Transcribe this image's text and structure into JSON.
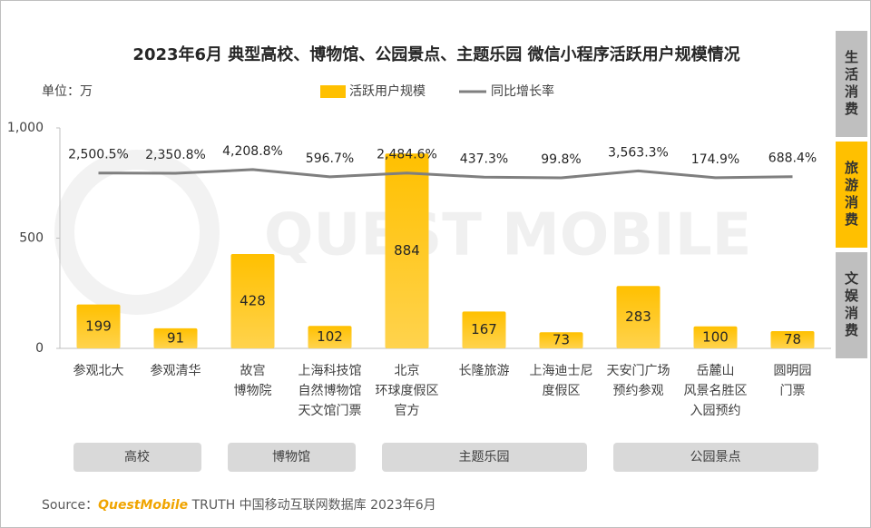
{
  "chart_data": {
    "type": "bar_line",
    "title": "2023年6月 典型高校、博物馆、公园景点、主题乐园 微信小程序活跃用户规模情况",
    "unit_label": "单位：万",
    "watermark": "QUEST MOBILE",
    "categories": [
      "参观北大",
      "参观清华",
      "故宫\n博物院",
      "上海科技馆\n自然博物馆\n天文馆门票",
      "北京\n环球度假区\n官方",
      "长隆旅游",
      "上海迪士尼\n度假区",
      "天安门广场\n预约参观",
      "岳麓山\n风景名胜区\n入园预约",
      "圆明园\n门票"
    ],
    "series": [
      {
        "name": "活跃用户规模",
        "type": "bar",
        "color": "#ffc000",
        "values": [
          199,
          91,
          428,
          102,
          884,
          167,
          73,
          283,
          100,
          78
        ]
      },
      {
        "name": "同比增长率",
        "type": "line",
        "axis": "y2",
        "color": "#7f7f7f",
        "values": [
          2500.5,
          2350.8,
          4208.8,
          596.7,
          2484.6,
          437.3,
          99.8,
          3563.3,
          174.9,
          688.4
        ],
        "value_labels": [
          "2,500.5%",
          "2,350.8%",
          "4,208.8%",
          "596.7%",
          "2,484.6%",
          "437.3%",
          "99.8%",
          "3,563.3%",
          "174.9%",
          "688.4%"
        ]
      }
    ],
    "ylim": [
      0,
      1000
    ],
    "yticks": [
      0,
      500,
      {
        "value": 1000,
        "label": "1,000"
      }
    ],
    "y2lim": [
      -85000,
      25000
    ],
    "groups": [
      {
        "label": "高校",
        "count": 2
      },
      {
        "label": "博物馆",
        "count": 2
      },
      {
        "label": "主题乐园",
        "count": 3
      },
      {
        "label": "公园景点",
        "count": 3
      }
    ],
    "tabs": [
      {
        "label": "生活消费",
        "active": false
      },
      {
        "label": "旅游消费",
        "active": true
      },
      {
        "label": "文娱消费",
        "active": false
      }
    ],
    "source": {
      "prefix": "Source：",
      "brand": "QuestMobile",
      "text": "TRUTH 中国移动互联网数据库 2023年6月"
    }
  }
}
